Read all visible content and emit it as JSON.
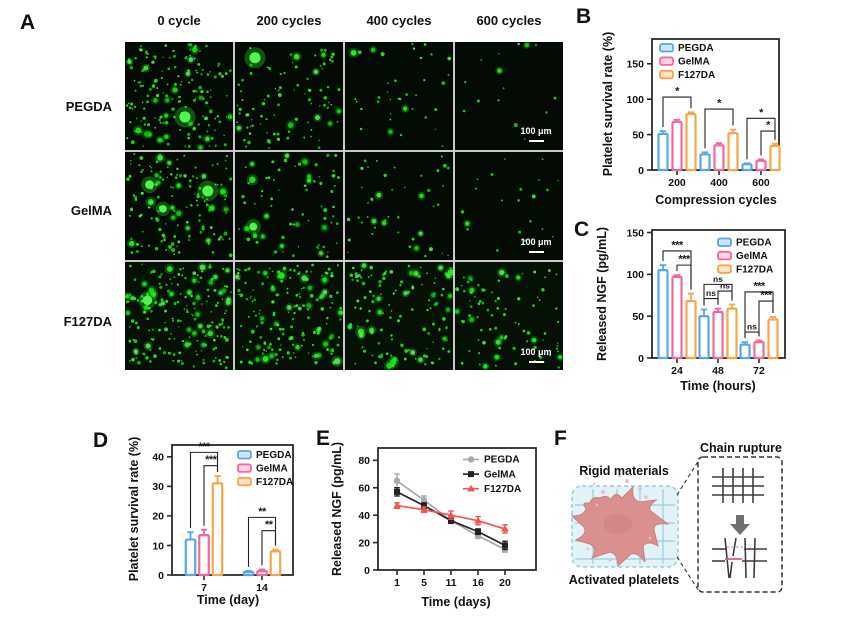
{
  "panels": {
    "A": {
      "label": "A",
      "col_headers": [
        "0 cycle",
        "200 cycles",
        "400 cycles",
        "600 cycles"
      ],
      "row_labels": [
        "PEGDA",
        "GelMA",
        "F127DA"
      ],
      "scale_bar_label": "100 μm",
      "densities": [
        [
          175,
          95,
          38,
          16
        ],
        [
          150,
          75,
          45,
          22
        ],
        [
          205,
          170,
          130,
          88
        ]
      ],
      "big_dots": [
        [
          1,
          1,
          0,
          0
        ],
        [
          3,
          1,
          0,
          0
        ],
        [
          1,
          0,
          0,
          0
        ]
      ],
      "cell_bg": [
        "#040b04",
        "#040b04",
        "#061106"
      ]
    },
    "B": {
      "label": "B"
    },
    "C": {
      "label": "C"
    },
    "D": {
      "label": "D"
    },
    "E": {
      "label": "E"
    },
    "F": {
      "label": "F",
      "rigid_materials_label": "Rigid materials",
      "chain_rupture_label": "Chain rupture",
      "activated_platelets_label": "Activated platelets"
    }
  },
  "chart_data": [
    {
      "id": "B",
      "type": "bar",
      "ylabel": "Platelet survival rate (%)",
      "xlabel": "Compression cycles",
      "categories": [
        "200",
        "400",
        "600"
      ],
      "yticks": [
        0,
        50,
        100,
        150
      ],
      "ylim": [
        0,
        185
      ],
      "legend_position": "top-left",
      "grid": false,
      "series": [
        {
          "name": "PEGDA",
          "color": "blue",
          "values": [
            51,
            22,
            8
          ],
          "errors": [
            4,
            3,
            1.5
          ]
        },
        {
          "name": "GelMA",
          "color": "pink",
          "values": [
            68,
            35,
            13
          ],
          "errors": [
            3,
            3,
            2
          ]
        },
        {
          "name": "F127DA",
          "color": "orange",
          "values": [
            79,
            52,
            34
          ],
          "errors": [
            2.5,
            5,
            3
          ]
        }
      ],
      "significance": [
        {
          "group": 0,
          "from": 0,
          "to": 2,
          "y": 103,
          "label": "*"
        },
        {
          "group": 1,
          "from": 0,
          "to": 2,
          "y": 86,
          "label": "*"
        },
        {
          "group": 2,
          "from": 0,
          "to": 2,
          "y": 73,
          "label": "*"
        },
        {
          "group": 2,
          "from": 1,
          "to": 2,
          "y": 55,
          "label": "*"
        }
      ]
    },
    {
      "id": "C",
      "type": "bar",
      "ylabel": "Released NGF (pg/mL)",
      "xlabel": "Time (hours)",
      "categories": [
        "24",
        "48",
        "72"
      ],
      "yticks": [
        0,
        50,
        100,
        150
      ],
      "ylim": [
        0,
        153
      ],
      "legend_position": "top-right",
      "grid": false,
      "series": [
        {
          "name": "PEGDA",
          "color": "blue",
          "values": [
            105,
            50,
            16
          ],
          "errors": [
            6,
            8,
            3
          ]
        },
        {
          "name": "GelMA",
          "color": "pink",
          "values": [
            97,
            55,
            19
          ],
          "errors": [
            2,
            4,
            2
          ]
        },
        {
          "name": "F127DA",
          "color": "orange",
          "values": [
            68,
            59,
            46
          ],
          "errors": [
            9,
            5,
            3
          ]
        }
      ],
      "significance": [
        {
          "group": 0,
          "from": 0,
          "to": 2,
          "y": 128,
          "label": "***"
        },
        {
          "group": 0,
          "from": 1,
          "to": 2,
          "y": 111,
          "label": "***"
        },
        {
          "group": 1,
          "from": 0,
          "to": 2,
          "y": 88,
          "label": "ns"
        },
        {
          "group": 1,
          "from": 1,
          "to": 2,
          "y": 80,
          "label": "ns"
        },
        {
          "group": 1,
          "from": 0,
          "to": 1,
          "y": 71,
          "label": "ns"
        },
        {
          "group": 2,
          "from": 0,
          "to": 2,
          "y": 79,
          "label": "***"
        },
        {
          "group": 2,
          "from": 1,
          "to": 2,
          "y": 68,
          "label": "***"
        },
        {
          "group": 2,
          "from": 0,
          "to": 1,
          "y": 31,
          "label": "ns"
        }
      ]
    },
    {
      "id": "D",
      "type": "bar",
      "ylabel": "Platelet survival rate (%)",
      "xlabel": "Time (day)",
      "categories": [
        "7",
        "14"
      ],
      "yticks": [
        0,
        10,
        20,
        30,
        40
      ],
      "ylim": [
        0,
        44
      ],
      "legend_position": "top-right",
      "grid": false,
      "series": [
        {
          "name": "PEGDA",
          "color": "blue",
          "values": [
            12,
            1
          ],
          "errors": [
            2.5,
            0.4
          ]
        },
        {
          "name": "GelMA",
          "color": "pink",
          "values": [
            13.5,
            1.3
          ],
          "errors": [
            1.8,
            0.6
          ]
        },
        {
          "name": "F127DA",
          "color": "orange",
          "values": [
            31,
            8
          ],
          "errors": [
            2.5,
            0.6
          ]
        }
      ],
      "significance": [
        {
          "group": 0,
          "from": 0,
          "to": 2,
          "y": 41.5,
          "label": "***"
        },
        {
          "group": 0,
          "from": 1,
          "to": 2,
          "y": 37,
          "label": "***"
        },
        {
          "group": 1,
          "from": 0,
          "to": 2,
          "y": 19.5,
          "label": "**"
        },
        {
          "group": 1,
          "from": 1,
          "to": 2,
          "y": 15,
          "label": "**"
        }
      ]
    },
    {
      "id": "E",
      "type": "line",
      "ylabel": "Released NGF (pg/mL)",
      "xlabel": "Time (days)",
      "categories": [
        "1",
        "5",
        "11",
        "16",
        "20"
      ],
      "yticks": [
        0,
        20,
        40,
        60,
        80
      ],
      "ylim": [
        0,
        89
      ],
      "legend_position": "top-right",
      "grid": false,
      "series": [
        {
          "name": "PEGDA",
          "color": "gray",
          "marker": "circle",
          "values": [
            65,
            51,
            36,
            25,
            15
          ],
          "errors": [
            5,
            3,
            2,
            2,
            2
          ]
        },
        {
          "name": "GelMA",
          "color": "black",
          "marker": "square",
          "values": [
            57,
            47,
            36,
            28,
            18
          ],
          "errors": [
            3,
            2,
            2,
            2,
            3
          ]
        },
        {
          "name": "F127DA",
          "color": "red",
          "marker": "triangle",
          "values": [
            47,
            44,
            40,
            36,
            30
          ],
          "errors": [
            2,
            2,
            3,
            3,
            3
          ]
        }
      ]
    }
  ],
  "colors": {
    "blue": "#58a6ea",
    "pink": "#f4679e",
    "orange": "#f5a54b",
    "gray": "#a8a8a8",
    "black": "#222222",
    "red": "#f05454",
    "axis": "#2a2a2a",
    "sig": "#222222",
    "green_dot": "#2fe52f",
    "scale_bar": "#ffffff",
    "f_box_fill": "#e2f2f7",
    "f_box_stroke": "#8fcfe0",
    "f_grid": "#8cc6dc",
    "f_network": "#3d3d3d",
    "f_pink_light": "#f2a9bb",
    "f_pink": "#e75480",
    "platelet": "#d9908f",
    "platelet_dark": "#c87e7e",
    "platelet_light": "#eeb6c2",
    "arrow_gray": "#6f6f6f"
  }
}
